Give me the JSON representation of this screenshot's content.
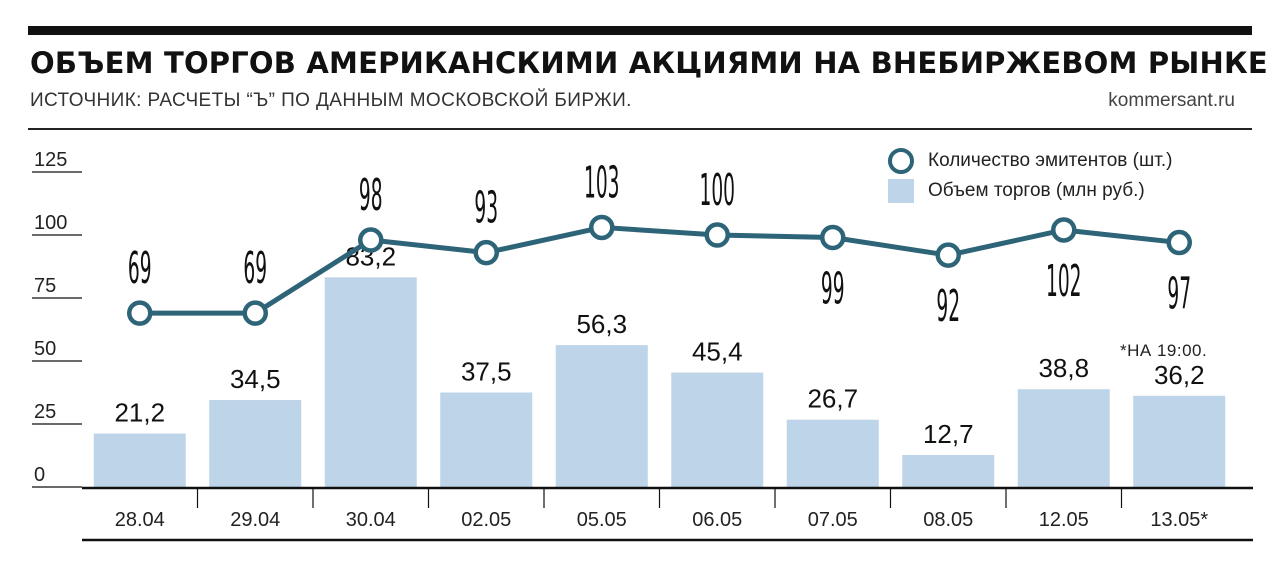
{
  "header": {
    "title": "ОБЪЕМ ТОРГОВ АМЕРИКАНСКИМИ АКЦИЯМИ НА ВНЕБИРЖЕВОМ РЫНКЕ",
    "source": "ИСТОЧНИК: РАСЧЕТЫ “Ъ” ПО ДАННЫМ МОСКОВСКОЙ БИРЖИ.",
    "site": "kommersant.ru"
  },
  "note": "*НА 19:00.",
  "colors": {
    "line": "#2d6478",
    "bar": "#bed4e8",
    "axis": "#111111"
  },
  "chart_data": {
    "type": "bar",
    "categories": [
      "28.04",
      "29.04",
      "30.04",
      "02.05",
      "05.05",
      "06.05",
      "07.05",
      "08.05",
      "12.05",
      "13.05*"
    ],
    "series": [
      {
        "name": "Объем торгов (млн руб.)",
        "type": "bar",
        "values": [
          21.2,
          34.5,
          83.2,
          37.5,
          56.3,
          45.4,
          26.7,
          12.7,
          38.8,
          36.2
        ],
        "labels": [
          "21,2",
          "34,5",
          "83,2",
          "37,5",
          "56,3",
          "45,4",
          "26,7",
          "12,7",
          "38,8",
          "36,2"
        ]
      },
      {
        "name": "Количество эмитентов (шт.)",
        "type": "line",
        "values": [
          69,
          69,
          98,
          93,
          103,
          100,
          99,
          92,
          102,
          97
        ],
        "labels": [
          "69",
          "69",
          "98",
          "93",
          "103",
          "100",
          "99",
          "92",
          "102",
          "97"
        ],
        "label_positions": [
          "above",
          "above",
          "above",
          "above",
          "above",
          "above",
          "below",
          "below",
          "below",
          "below"
        ]
      }
    ],
    "ylim": [
      0,
      125
    ],
    "yticks": [
      0,
      25,
      50,
      75,
      100,
      125
    ],
    "ytick_labels": [
      "0",
      "25",
      "50",
      "75",
      "100",
      "125"
    ],
    "legend_position": "top-right",
    "grid": false
  }
}
